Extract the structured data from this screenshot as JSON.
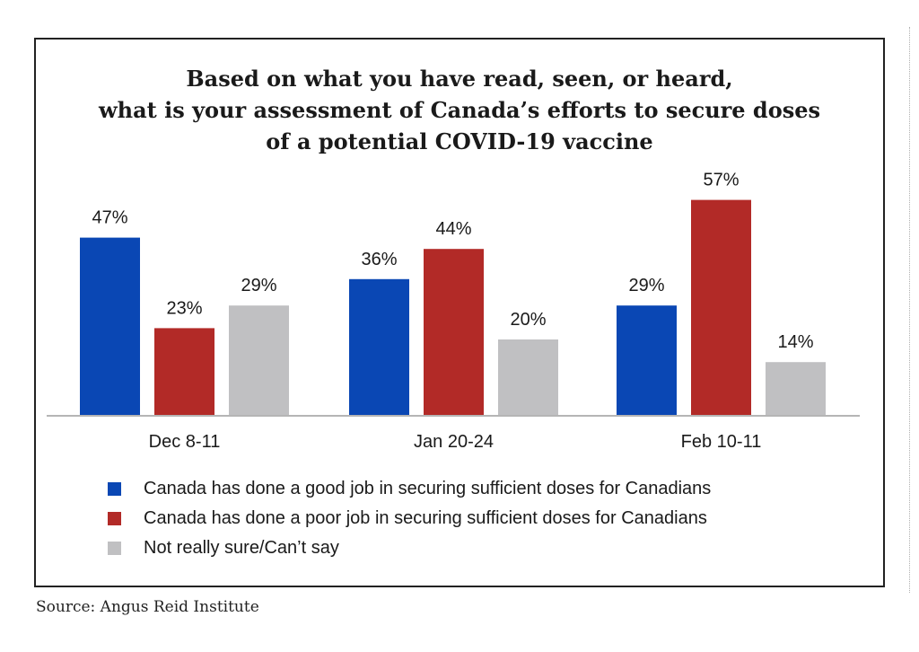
{
  "chart_data": {
    "type": "bar",
    "title_lines": [
      "Based on what you have read, seen, or heard,",
      "what is your assessment of Canada’s efforts to secure doses",
      "of a potential COVID-19 vaccine"
    ],
    "categories": [
      "Dec 8-11",
      "Jan 20-24",
      "Feb 10-11"
    ],
    "series": [
      {
        "name": "Canada has done a good job in securing sufficient doses for Canadians",
        "values": [
          47,
          36,
          29
        ],
        "labels": [
          "47%",
          "36%",
          "29%"
        ],
        "color": "#0a47b4"
      },
      {
        "name": "Canada has done a poor job in securing sufficient doses for Canadians",
        "values": [
          23,
          44,
          57
        ],
        "labels": [
          "23%",
          "44%",
          "57%"
        ],
        "color": "#b22a27"
      },
      {
        "name": "Not really sure/Can’t say",
        "values": [
          29,
          20,
          14
        ],
        "labels": [
          "29%",
          "20%",
          "14%"
        ],
        "color": "#c0c0c2"
      }
    ],
    "ylim": [
      0,
      60
    ],
    "grid": false,
    "legend_position": "bottom"
  },
  "source": "Source: Angus Reid Institute"
}
